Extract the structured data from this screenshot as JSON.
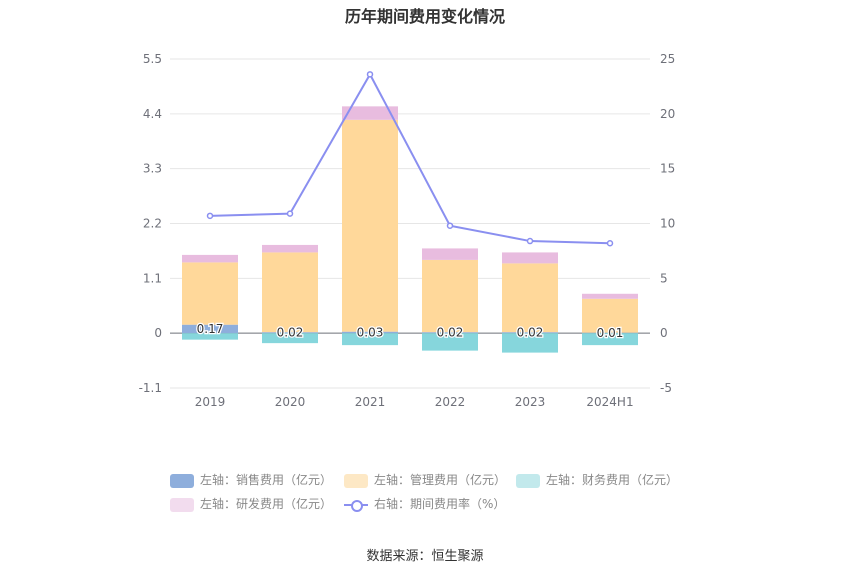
{
  "chart_data": {
    "type": "bar",
    "title": "历年期间费用变化情况",
    "categories": [
      "2019",
      "2020",
      "2021",
      "2022",
      "2023",
      "2024H1"
    ],
    "left_axis": {
      "ticks": [
        "5.5",
        "4.4",
        "3.3",
        "2.2",
        "1.1",
        "0",
        "-1.1"
      ],
      "ylim": [
        -1.1,
        5.5
      ]
    },
    "right_axis": {
      "ticks": [
        "25",
        "20",
        "15",
        "10",
        "5",
        "0",
        "-5"
      ],
      "ylim": [
        -5,
        25
      ]
    },
    "series": [
      {
        "name": "左轴：销售费用（亿元）",
        "axis": "left",
        "type": "bar",
        "stack": "cost",
        "color": "#8eaedc",
        "values": [
          0.17,
          0.02,
          0.03,
          0.02,
          0.02,
          0.01
        ],
        "labels": [
          "0.17",
          "0.02",
          "0.03",
          "0.02",
          "0.02",
          "0.01"
        ]
      },
      {
        "name": "左轴：管理费用（亿元）",
        "axis": "left",
        "type": "bar",
        "stack": "cost",
        "color": "#ffd89a",
        "values": [
          1.25,
          1.6,
          4.25,
          1.45,
          1.38,
          0.68
        ]
      },
      {
        "name": "左轴：财务费用（亿元）",
        "axis": "left",
        "type": "bar",
        "stack": "cost",
        "color": "#86d6dc",
        "values": [
          -0.13,
          -0.2,
          -0.24,
          -0.35,
          -0.39,
          -0.24
        ]
      },
      {
        "name": "左轴：研发费用（亿元）",
        "axis": "left",
        "type": "bar",
        "stack": "cost",
        "color": "#e8bcdf",
        "values": [
          0.15,
          0.15,
          0.27,
          0.23,
          0.22,
          0.1
        ]
      },
      {
        "name": "右轴：期间费用率（%）",
        "axis": "right",
        "type": "line",
        "color": "#8a8ff0",
        "values": [
          10.7,
          10.9,
          23.6,
          9.8,
          8.4,
          8.2
        ]
      }
    ],
    "legend_position": "bottom",
    "grid": true
  },
  "legend": {
    "sales": "左轴：销售费用（亿元）",
    "admin": "左轴：管理费用（亿元）",
    "finance": "左轴：财务费用（亿元）",
    "rnd": "左轴：研发费用（亿元）",
    "rate": "右轴：期间费用率（%）",
    "colors": {
      "sales": "#8eaedc",
      "admin": "#fde8c5",
      "finance": "#c2e9ec",
      "rnd": "#f2dcee"
    }
  },
  "source": "数据来源：恒生聚源"
}
